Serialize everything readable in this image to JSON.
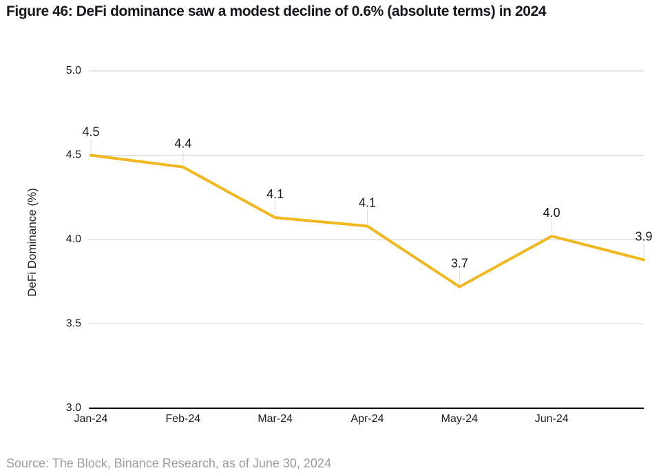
{
  "header": {
    "title": "Figure 46: DeFi dominance saw a modest decline of 0.6% (absolute terms) in 2024"
  },
  "footer": {
    "source": "Source: The Block, Binance Research, as of June 30, 2024"
  },
  "colors": {
    "line": "#F0B81E",
    "grid": "#D8D8D8",
    "leader": "#DCDCDC",
    "axis": "#000000",
    "text": "#1C1C1C",
    "muted": "#9C9C9C"
  },
  "chart_data": {
    "type": "line",
    "title": "Figure 46: DeFi dominance saw a modest decline of 0.6% (absolute terms) in 2024",
    "xlabel": "",
    "ylabel": "DeFi Dominance (%)",
    "x_tick_labels": [
      "Jan-24",
      "Feb-24",
      "Mar-24",
      "Apr-24",
      "May-24",
      "Jun-24"
    ],
    "yticks": [
      3.0,
      3.5,
      4.0,
      4.5,
      5.0
    ],
    "ylim": [
      3.0,
      5.0
    ],
    "grid": true,
    "legend": false,
    "series": [
      {
        "name": "DeFi Dominance (%)",
        "x": [
          "Jan-24",
          "Feb-24",
          "Mar-24",
          "Apr-24",
          "May-24",
          "Jun-24",
          ""
        ],
        "values": [
          4.5,
          4.43,
          4.13,
          4.08,
          3.72,
          4.02,
          3.88
        ],
        "point_labels": [
          "4.5",
          "4.4",
          "4.1",
          "4.1",
          "3.7",
          "4.0",
          "3.9"
        ],
        "color": "#F0B81E"
      }
    ],
    "source": "Source: The Block, Binance Research, as of June 30, 2024"
  }
}
